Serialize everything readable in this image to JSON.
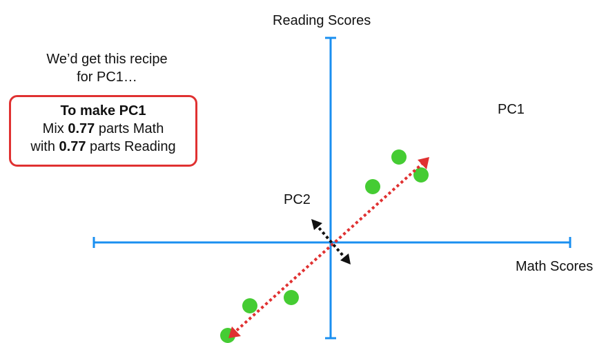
{
  "axes": {
    "x_label": "Math Scores",
    "y_label": "Reading Scores"
  },
  "labels": {
    "pc1": "PC1",
    "pc2": "PC2"
  },
  "intro": {
    "line1": "We’d get this recipe",
    "line2": "for PC1…"
  },
  "recipe": {
    "title": "To make PC1",
    "line1_pre": "Mix ",
    "line1_value": "0.77",
    "line1_post": " parts Math",
    "line2_pre": "with ",
    "line2_value": "0.77",
    "line2_post": " parts Reading"
  },
  "colors": {
    "axis": "#1a8ff0",
    "point": "#45cc33",
    "pc1_arrow": "#e03131",
    "pc2_arrow": "#111111",
    "box_border": "#e03131"
  }
}
